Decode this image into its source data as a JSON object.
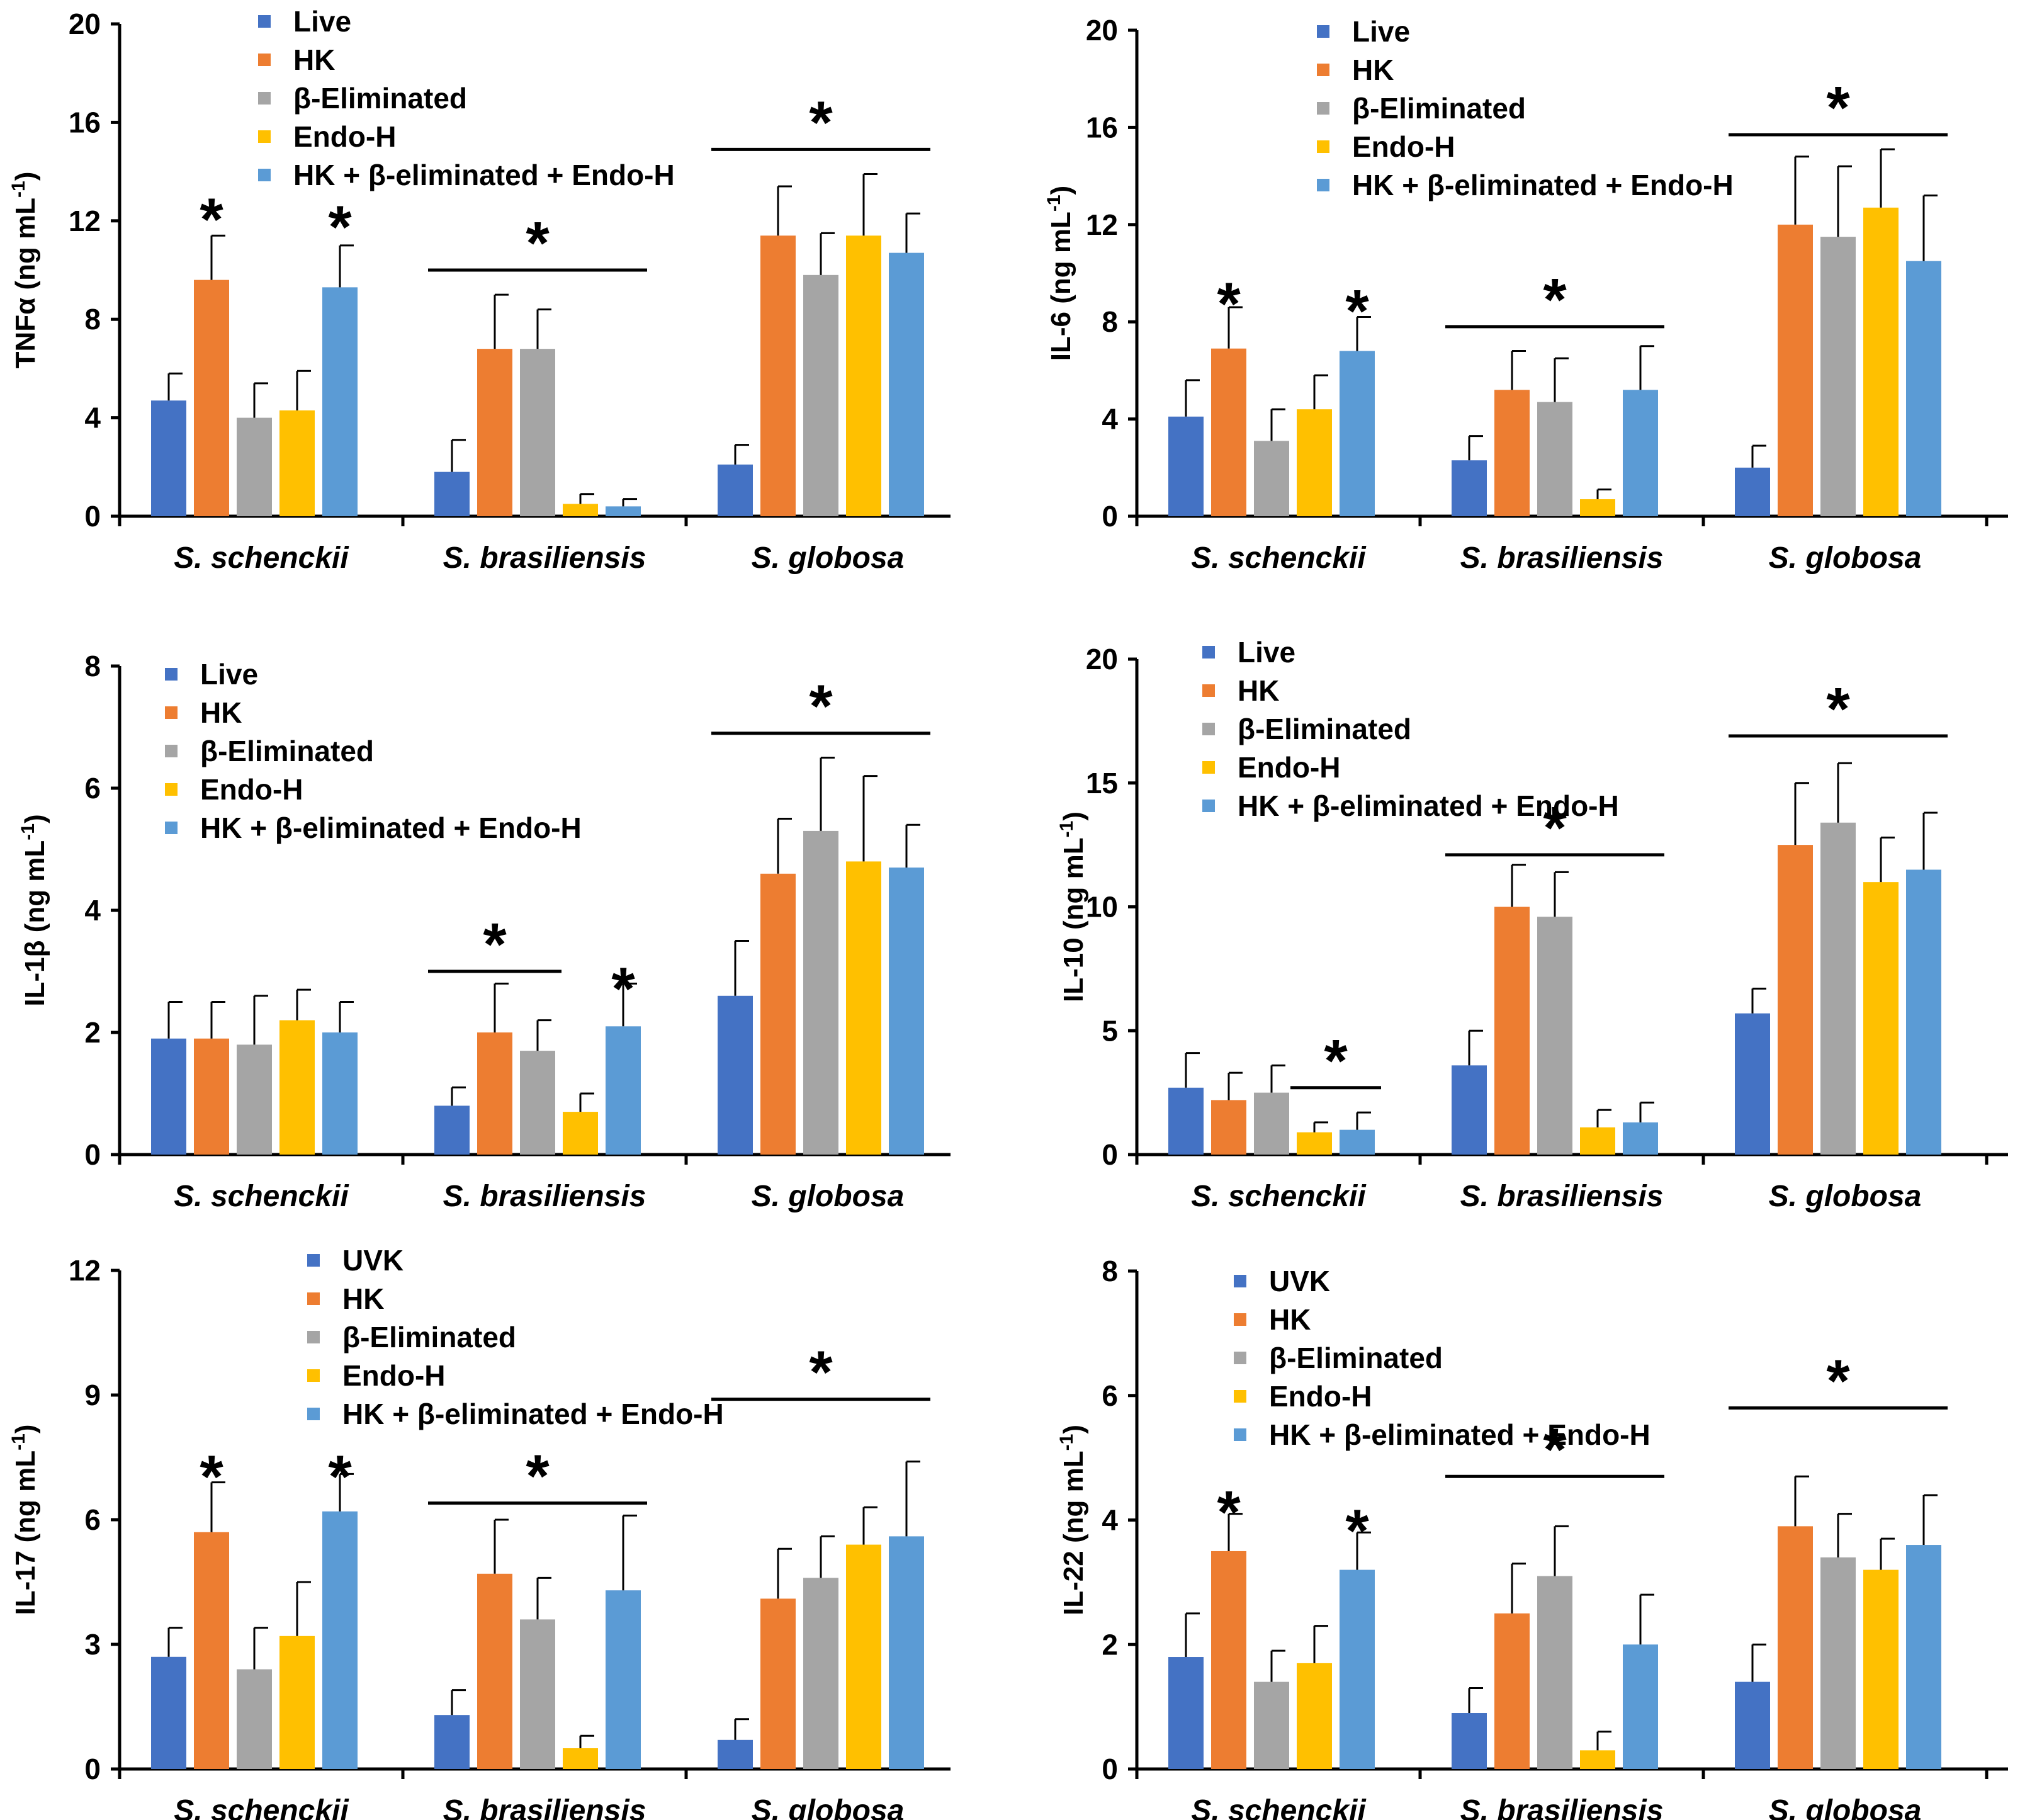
{
  "colors": {
    "series": [
      "#4472C4",
      "#ED7D31",
      "#A5A5A5",
      "#FFC000",
      "#5B9BD5"
    ],
    "axis": "#000000"
  },
  "chart_data": [
    {
      "type": "bar",
      "ylabel_main": "TNFα  (ng mL",
      "ylabel_sup": "-1",
      "ylabel_tail": ")",
      "ylim": [
        0,
        20
      ],
      "yticks": [
        "0",
        "4",
        "8",
        "12",
        "16",
        "20"
      ],
      "categories": [
        "S. schenckii",
        "S. brasiliensis",
        "S. globosa"
      ],
      "legend": [
        "Live",
        "HK",
        "β-Eliminated",
        "Endo-H",
        "HK + β-eliminated + Endo-H"
      ],
      "series": [
        {
          "name": "Live",
          "values": [
            4.7,
            1.8,
            2.1
          ],
          "errors": [
            1.1,
            1.3,
            0.8
          ]
        },
        {
          "name": "HK",
          "values": [
            9.6,
            6.8,
            11.4
          ],
          "errors": [
            1.8,
            2.2,
            2.0
          ]
        },
        {
          "name": "β-Eliminated",
          "values": [
            4.0,
            6.8,
            9.8
          ],
          "errors": [
            1.4,
            1.6,
            1.7
          ]
        },
        {
          "name": "Endo-H",
          "values": [
            4.3,
            0.5,
            11.4
          ],
          "errors": [
            1.6,
            0.4,
            2.5
          ]
        },
        {
          "name": "HK + β-eliminated + Endo-H",
          "values": [
            9.3,
            0.4,
            10.7
          ],
          "errors": [
            1.7,
            0.3,
            1.6
          ]
        }
      ],
      "significance": [
        {
          "label": "*",
          "category": 0,
          "series": [
            1
          ],
          "y": 13.0
        },
        {
          "label": "*",
          "category": 0,
          "series": [
            4
          ],
          "y": 12.7
        },
        {
          "label": "*",
          "category": 1,
          "series": [
            0,
            4
          ],
          "y": 10.0
        },
        {
          "label": "*",
          "category": 2,
          "series": [
            0,
            4
          ],
          "y": 14.9
        }
      ]
    },
    {
      "type": "bar",
      "ylabel_main": "IL-6  (ng mL",
      "ylabel_sup": "-1",
      "ylabel_tail": ")",
      "ylim": [
        0,
        20
      ],
      "yticks": [
        "0",
        "4",
        "8",
        "12",
        "16",
        "20"
      ],
      "categories": [
        "S. schenckii",
        "S. brasiliensis",
        "S. globosa"
      ],
      "legend": [
        "Live",
        "HK",
        "β-Eliminated",
        "Endo-H",
        "HK + β-eliminated + Endo-H"
      ],
      "series": [
        {
          "name": "Live",
          "values": [
            4.1,
            2.3,
            2.0
          ],
          "errors": [
            1.5,
            1.0,
            0.9
          ]
        },
        {
          "name": "HK",
          "values": [
            6.9,
            5.2,
            12.0
          ],
          "errors": [
            1.7,
            1.6,
            2.8
          ]
        },
        {
          "name": "β-Eliminated",
          "values": [
            3.1,
            4.7,
            11.5
          ],
          "errors": [
            1.3,
            1.8,
            2.9
          ]
        },
        {
          "name": "Endo-H",
          "values": [
            4.4,
            0.7,
            12.7
          ],
          "errors": [
            1.4,
            0.4,
            2.4
          ]
        },
        {
          "name": "HK + β-eliminated + Endo-H",
          "values": [
            6.8,
            5.2,
            10.5
          ],
          "errors": [
            1.4,
            1.8,
            2.7
          ]
        }
      ],
      "significance": [
        {
          "label": "*",
          "category": 0,
          "series": [
            1
          ],
          "y": 9.7
        },
        {
          "label": "*",
          "category": 0,
          "series": [
            4
          ],
          "y": 9.4
        },
        {
          "label": "*",
          "category": 1,
          "series": [
            0,
            4
          ],
          "y": 7.8
        },
        {
          "label": "*",
          "category": 2,
          "series": [
            0,
            4
          ],
          "y": 15.7
        }
      ]
    },
    {
      "type": "bar",
      "ylabel_main": "IL-1β  (ng mL",
      "ylabel_sup": "-1",
      "ylabel_tail": ")",
      "ylim": [
        0,
        8
      ],
      "yticks": [
        "0",
        "2",
        "4",
        "6",
        "8"
      ],
      "categories": [
        "S. schenckii",
        "S. brasiliensis",
        "S. globosa"
      ],
      "legend": [
        "Live",
        "HK",
        "β-Eliminated",
        "Endo-H",
        "HK + β-eliminated + Endo-H"
      ],
      "series": [
        {
          "name": "Live",
          "values": [
            1.9,
            0.8,
            2.6
          ],
          "errors": [
            0.6,
            0.3,
            0.9
          ]
        },
        {
          "name": "HK",
          "values": [
            1.9,
            2.0,
            4.6
          ],
          "errors": [
            0.6,
            0.8,
            0.9
          ]
        },
        {
          "name": "β-Eliminated",
          "values": [
            1.8,
            1.7,
            5.3
          ],
          "errors": [
            0.8,
            0.5,
            1.2
          ]
        },
        {
          "name": "Endo-H",
          "values": [
            2.2,
            0.7,
            4.8
          ],
          "errors": [
            0.5,
            0.3,
            1.4
          ]
        },
        {
          "name": "HK + β-eliminated + Endo-H",
          "values": [
            2.0,
            2.1,
            4.7
          ],
          "errors": [
            0.5,
            0.7,
            0.7
          ]
        }
      ],
      "significance": [
        {
          "label": "*",
          "category": 1,
          "series": [
            0,
            2
          ],
          "y": 3.0
        },
        {
          "label": "*",
          "category": 1,
          "series": [
            4
          ],
          "y": 3.1
        },
        {
          "label": "*",
          "category": 2,
          "series": [
            0,
            4
          ],
          "y": 6.9
        }
      ]
    },
    {
      "type": "bar",
      "ylabel_main": "IL-10  (ng mL",
      "ylabel_sup": "-1",
      "ylabel_tail": ")",
      "ylim": [
        0,
        20
      ],
      "yticks": [
        "0",
        "5",
        "10",
        "15",
        "20"
      ],
      "categories": [
        "S. schenckii",
        "S. brasiliensis",
        "S. globosa"
      ],
      "legend": [
        "Live",
        "HK",
        "β-Eliminated",
        "Endo-H",
        "HK + β-eliminated + Endo-H"
      ],
      "series": [
        {
          "name": "Live",
          "values": [
            2.7,
            3.6,
            5.7
          ],
          "errors": [
            1.4,
            1.4,
            1.0
          ]
        },
        {
          "name": "HK",
          "values": [
            2.2,
            10.0,
            12.5
          ],
          "errors": [
            1.1,
            1.7,
            2.5
          ]
        },
        {
          "name": "β-Eliminated",
          "values": [
            2.5,
            9.6,
            13.4
          ],
          "errors": [
            1.1,
            1.8,
            2.4
          ]
        },
        {
          "name": "Endo-H",
          "values": [
            0.9,
            1.1,
            11.0
          ],
          "errors": [
            0.4,
            0.7,
            1.8
          ]
        },
        {
          "name": "HK + β-eliminated + Endo-H",
          "values": [
            1.0,
            1.3,
            11.5
          ],
          "errors": [
            0.7,
            0.8,
            2.3
          ]
        }
      ],
      "significance": [
        {
          "label": "*",
          "category": 0,
          "series": [
            3,
            4
          ],
          "y": 2.7
        },
        {
          "label": "*",
          "category": 1,
          "series": [
            0,
            4
          ],
          "y": 12.1
        },
        {
          "label": "*",
          "category": 2,
          "series": [
            0,
            4
          ],
          "y": 16.9
        }
      ]
    },
    {
      "type": "bar",
      "ylabel_main": "IL-17  (ng mL",
      "ylabel_sup": "-1",
      "ylabel_tail": ")",
      "ylim": [
        0,
        12
      ],
      "yticks": [
        "0",
        "3",
        "6",
        "9",
        "12"
      ],
      "categories": [
        "S. schenckii",
        "S. brasiliensis",
        "S. globosa"
      ],
      "legend": [
        "UVK",
        "HK",
        "β-Eliminated",
        "Endo-H",
        "HK + β-eliminated + Endo-H"
      ],
      "series": [
        {
          "name": "UVK",
          "values": [
            2.7,
            1.3,
            0.7
          ],
          "errors": [
            0.7,
            0.6,
            0.5
          ]
        },
        {
          "name": "HK",
          "values": [
            5.7,
            4.7,
            4.1
          ],
          "errors": [
            1.2,
            1.3,
            1.2
          ]
        },
        {
          "name": "β-Eliminated",
          "values": [
            2.4,
            3.6,
            4.6
          ],
          "errors": [
            1.0,
            1.0,
            1.0
          ]
        },
        {
          "name": "Endo-H",
          "values": [
            3.2,
            0.5,
            5.4
          ],
          "errors": [
            1.3,
            0.3,
            0.9
          ]
        },
        {
          "name": "HK + β-eliminated + Endo-H",
          "values": [
            6.2,
            4.3,
            5.6
          ],
          "errors": [
            0.9,
            1.8,
            1.8
          ]
        }
      ],
      "significance": [
        {
          "label": "*",
          "category": 0,
          "series": [
            1
          ],
          "y": 7.6
        },
        {
          "label": "*",
          "category": 0,
          "series": [
            4
          ],
          "y": 7.6
        },
        {
          "label": "*",
          "category": 1,
          "series": [
            0,
            4
          ],
          "y": 6.4
        },
        {
          "label": "*",
          "category": 2,
          "series": [
            0,
            4
          ],
          "y": 8.9
        }
      ]
    },
    {
      "type": "bar",
      "ylabel_main": "IL-22  (ng mL",
      "ylabel_sup": "-1",
      "ylabel_tail": ")",
      "ylim": [
        0,
        8
      ],
      "yticks": [
        "0",
        "2",
        "4",
        "6",
        "8"
      ],
      "categories": [
        "S. schenckii",
        "S. brasiliensis",
        "S. globosa"
      ],
      "legend": [
        "UVK",
        "HK",
        "β-Eliminated",
        "Endo-H",
        "HK + β-eliminated + Endo-H"
      ],
      "series": [
        {
          "name": "UVK",
          "values": [
            1.8,
            0.9,
            1.4
          ],
          "errors": [
            0.7,
            0.4,
            0.6
          ]
        },
        {
          "name": "HK",
          "values": [
            3.5,
            2.5,
            3.9
          ],
          "errors": [
            0.6,
            0.8,
            0.8
          ]
        },
        {
          "name": "β-Eliminated",
          "values": [
            1.4,
            3.1,
            3.4
          ],
          "errors": [
            0.5,
            0.8,
            0.7
          ]
        },
        {
          "name": "Endo-H",
          "values": [
            1.7,
            0.3,
            3.2
          ],
          "errors": [
            0.6,
            0.3,
            0.5
          ]
        },
        {
          "name": "HK + β-eliminated + Endo-H",
          "values": [
            3.2,
            2.0,
            3.6
          ],
          "errors": [
            0.6,
            0.8,
            0.8
          ]
        }
      ],
      "significance": [
        {
          "label": "*",
          "category": 0,
          "series": [
            1
          ],
          "y": 4.5
        },
        {
          "label": "*",
          "category": 0,
          "series": [
            4
          ],
          "y": 4.2
        },
        {
          "label": "*",
          "category": 1,
          "series": [
            0,
            4
          ],
          "y": 4.7
        },
        {
          "label": "*",
          "category": 2,
          "series": [
            0,
            4
          ],
          "y": 5.8
        }
      ]
    }
  ]
}
